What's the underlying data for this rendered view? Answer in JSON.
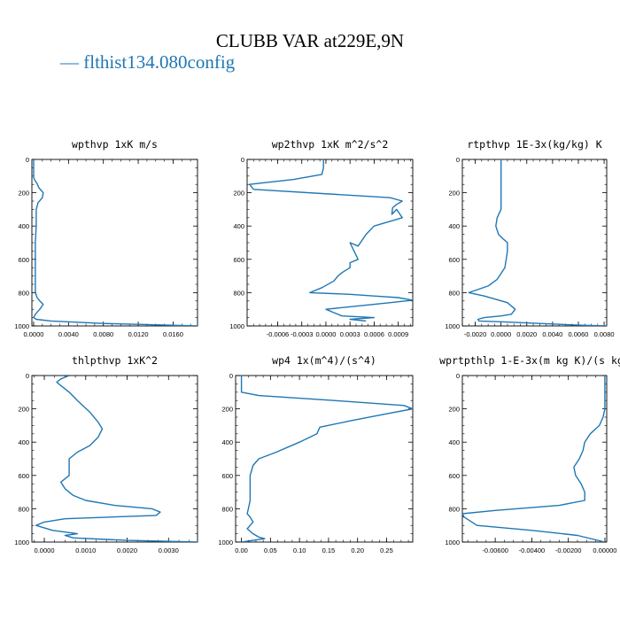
{
  "figure": {
    "title": "CLUBB VAR at229E,9N",
    "legend": [
      {
        "label": "— flthist134.080config",
        "color": "#1f77b4"
      }
    ]
  },
  "chart_data": [
    {
      "type": "line",
      "title": "wpthvp   1xK m/s",
      "xlabel": "",
      "ylabel": "",
      "xlim": [
        -0.0002,
        0.0188
      ],
      "ylim": [
        1000,
        0
      ],
      "xticks": [
        0.0,
        0.004,
        0.008,
        0.012,
        0.016
      ],
      "xtick_labels": [
        "0.0000",
        "0.0040",
        "0.0080",
        "0.0120",
        "0.0160"
      ],
      "yticks": [
        0,
        200,
        400,
        600,
        800,
        1000
      ],
      "ytick_labels": [
        "0",
        "200",
        "400",
        "600",
        "800",
        "1000"
      ],
      "series": [
        {
          "color": "#1f77b4",
          "x": [
            0.0,
            0.0,
            0.0002,
            0.0004,
            0.0006,
            0.0011,
            0.001,
            0.0005,
            0.0003,
            0.0003,
            0.0002,
            0.0002,
            0.0002,
            0.0002,
            0.0004,
            0.0007,
            0.0011,
            0.0007,
            0.0002,
            0.0,
            0.0003,
            0.002,
            0.008,
            0.0188
          ],
          "y": [
            0,
            110,
            130,
            145,
            170,
            200,
            230,
            260,
            300,
            400,
            500,
            600,
            700,
            800,
            830,
            850,
            870,
            900,
            930,
            950,
            960,
            970,
            985,
            1000
          ]
        }
      ]
    },
    {
      "type": "line",
      "title": "wp2thvp   1xK m^2/s^2",
      "xlabel": "",
      "ylabel": "",
      "xlim": [
        -0.00098,
        0.00108
      ],
      "ylim": [
        1000,
        0
      ],
      "xticks": [
        -0.0006,
        -0.0003,
        0.0,
        0.0003,
        0.0006,
        0.0009
      ],
      "xtick_labels": [
        "-0.0006",
        "-0.0003",
        "0.0000",
        "0.0003",
        "0.0006",
        "0.0009"
      ],
      "yticks": [
        0,
        200,
        400,
        600,
        800,
        1000
      ],
      "ytick_labels": [
        "0",
        "200",
        "400",
        "600",
        "800",
        "1000"
      ],
      "series": [
        {
          "color": "#1f77b4",
          "x": [
            -3e-05,
            -3e-05,
            -5e-05,
            -0.0004,
            -0.00095,
            -0.0009,
            0.0008,
            0.00095,
            0.00088,
            0.00083,
            0.00082,
            0.00088,
            0.00095,
            0.0006,
            0.0005,
            0.0004,
            0.0003,
            0.00035,
            0.0004,
            0.0003,
            0.0003,
            0.0002,
            0.00015,
            0.0001,
            -5e-05,
            -0.0002,
            0.0003,
            0.0006,
            0.0009,
            0.00108,
            0.0008,
            0.0004,
            0.0,
            0.0001,
            0.0002,
            0.0006,
            0.0003,
            0.0005
          ],
          "y": [
            0,
            50,
            90,
            120,
            150,
            180,
            230,
            250,
            270,
            290,
            330,
            300,
            350,
            400,
            450,
            520,
            500,
            550,
            600,
            620,
            650,
            680,
            700,
            730,
            770,
            800,
            810,
            820,
            830,
            845,
            860,
            880,
            900,
            920,
            940,
            950,
            960,
            970
          ]
        }
      ]
    },
    {
      "type": "line",
      "title": "rtpthvp   1E-3x(kg/kg) K",
      "xlabel": "",
      "ylabel": "",
      "xlim": [
        -0.003,
        0.0082
      ],
      "ylim": [
        1000,
        0
      ],
      "xticks": [
        -0.002,
        0.0,
        0.002,
        0.004,
        0.006,
        0.008
      ],
      "xtick_labels": [
        "-0.0020",
        "0.0000",
        "0.0020",
        "0.0040",
        "0.0060",
        "0.0080"
      ],
      "yticks": [
        0,
        200,
        400,
        600,
        800,
        1000
      ],
      "ytick_labels": [
        "0",
        "200",
        "400",
        "600",
        "800",
        "1000"
      ],
      "series": [
        {
          "color": "#1f77b4",
          "x": [
            0.0,
            0.0,
            0.0,
            0.0,
            -0.0003,
            -0.0004,
            -0.0002,
            0.0002,
            0.0005,
            0.0005,
            0.0004,
            0.0003,
            -0.0003,
            -0.001,
            -0.0025,
            -0.0013,
            0.0005,
            0.0011,
            0.0008,
            0.0,
            -0.0013,
            -0.0018,
            -0.0017,
            0.0,
            0.003,
            0.006,
            0.0082
          ],
          "y": [
            0,
            100,
            200,
            300,
            350,
            400,
            450,
            480,
            500,
            550,
            600,
            650,
            720,
            760,
            800,
            820,
            860,
            900,
            930,
            940,
            950,
            960,
            970,
            975,
            985,
            995,
            1000
          ]
        }
      ]
    },
    {
      "type": "line",
      "title": "thlpthvp   1xK^2",
      "xlabel": "",
      "ylabel": "",
      "xlim": [
        -0.0003,
        0.0037
      ],
      "ylim": [
        1000,
        0
      ],
      "xticks": [
        0.0,
        0.001,
        0.002,
        0.003
      ],
      "xtick_labels": [
        "0.0000",
        "0.0010",
        "0.0020",
        "0.0030"
      ],
      "yticks": [
        0,
        200,
        400,
        600,
        800,
        1000
      ],
      "ytick_labels": [
        "0",
        "200",
        "400",
        "600",
        "800",
        "1000"
      ],
      "series": [
        {
          "color": "#1f77b4",
          "x": [
            0.0006,
            0.0004,
            0.0003,
            0.0004,
            0.0006,
            0.0008,
            0.0011,
            0.0013,
            0.0014,
            0.0013,
            0.0011,
            0.0008,
            0.0006,
            0.0006,
            0.0006,
            0.0004,
            0.0005,
            0.0007,
            0.001,
            0.0017,
            0.0026,
            0.0028,
            0.0027,
            0.0005,
            0.0,
            -0.0002,
            0.0002,
            0.0008,
            0.0005,
            0.0007,
            0.002,
            0.0037
          ],
          "y": [
            0,
            20,
            40,
            60,
            100,
            150,
            220,
            280,
            320,
            370,
            420,
            460,
            500,
            550,
            600,
            640,
            680,
            720,
            750,
            780,
            800,
            820,
            840,
            860,
            880,
            900,
            930,
            950,
            960,
            975,
            990,
            1000
          ]
        }
      ]
    },
    {
      "type": "line",
      "title": "wp4   1x(m^4)/(s^4)",
      "xlabel": "",
      "ylabel": "",
      "xlim": [
        -0.01,
        0.295
      ],
      "ylim": [
        1000,
        0
      ],
      "xticks": [
        0.0,
        0.05,
        0.1,
        0.15,
        0.2,
        0.25
      ],
      "xtick_labels": [
        "0.00",
        "0.05",
        "0.10",
        "0.15",
        "0.20",
        "0.25"
      ],
      "yticks": [
        0,
        200,
        400,
        600,
        800,
        1000
      ],
      "ytick_labels": [
        "0",
        "200",
        "400",
        "600",
        "800",
        "1000"
      ],
      "series": [
        {
          "color": "#1f77b4",
          "x": [
            0.0,
            0.0,
            0.0,
            0.03,
            0.16,
            0.28,
            0.295,
            0.25,
            0.19,
            0.135,
            0.13,
            0.1,
            0.06,
            0.03,
            0.02,
            0.015,
            0.015,
            0.015,
            0.015,
            0.012,
            0.01,
            0.015,
            0.02,
            0.015,
            0.01,
            0.02,
            0.03,
            0.04,
            0.02,
            0.0
          ],
          "y": [
            0,
            50,
            100,
            120,
            150,
            180,
            200,
            230,
            270,
            310,
            350,
            400,
            460,
            500,
            540,
            600,
            650,
            700,
            750,
            800,
            830,
            850,
            880,
            900,
            920,
            950,
            970,
            980,
            990,
            1000
          ]
        }
      ]
    },
    {
      "type": "line",
      "title": "wprtpthlp   1-E-3x(m kg K)/(s kg)",
      "xlabel": "",
      "ylabel": "",
      "xlim": [
        -0.0078,
        0.0001
      ],
      "ylim": [
        1000,
        0
      ],
      "xticks": [
        -0.006,
        -0.004,
        -0.002,
        0.0
      ],
      "xtick_labels": [
        "-0.00600",
        "-0.00400",
        "-0.00200",
        "0.00000"
      ],
      "yticks": [
        0,
        200,
        400,
        600,
        800,
        1000
      ],
      "ytick_labels": [
        "0",
        "200",
        "400",
        "600",
        "800",
        "1000"
      ],
      "series": [
        {
          "color": "#1f77b4",
          "x": [
            0.0,
            0.0,
            0.0,
            -0.0001,
            -0.0003,
            -0.0008,
            -0.0011,
            -0.0012,
            -0.0014,
            -0.0017,
            -0.0016,
            -0.0013,
            -0.0011,
            -0.0011,
            -0.0025,
            -0.006,
            -0.0078,
            -0.0077,
            -0.007,
            -0.004,
            -0.0015,
            0.0
          ],
          "y": [
            0,
            100,
            200,
            250,
            300,
            350,
            400,
            450,
            500,
            550,
            600,
            650,
            700,
            750,
            780,
            810,
            830,
            850,
            900,
            930,
            960,
            1000
          ]
        }
      ]
    }
  ]
}
